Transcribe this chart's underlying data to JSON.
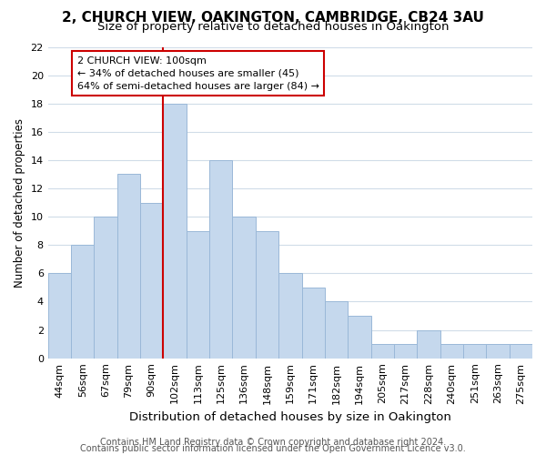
{
  "title": "2, CHURCH VIEW, OAKINGTON, CAMBRIDGE, CB24 3AU",
  "subtitle": "Size of property relative to detached houses in Oakington",
  "xlabel": "Distribution of detached houses by size in Oakington",
  "ylabel": "Number of detached properties",
  "categories": [
    "44sqm",
    "56sqm",
    "67sqm",
    "79sqm",
    "90sqm",
    "102sqm",
    "113sqm",
    "125sqm",
    "136sqm",
    "148sqm",
    "159sqm",
    "171sqm",
    "182sqm",
    "194sqm",
    "205sqm",
    "217sqm",
    "228sqm",
    "240sqm",
    "251sqm",
    "263sqm",
    "275sqm"
  ],
  "values": [
    6,
    8,
    10,
    13,
    11,
    18,
    9,
    14,
    10,
    9,
    6,
    5,
    4,
    3,
    1,
    1,
    2,
    1,
    1,
    1,
    1
  ],
  "bar_color": "#c5d8ed",
  "bar_edge_color": "#9ab8d8",
  "vline_x_index": 5,
  "vline_color": "#cc0000",
  "annotation_line1": "2 CHURCH VIEW: 100sqm",
  "annotation_line2": "← 34% of detached houses are smaller (45)",
  "annotation_line3": "64% of semi-detached houses are larger (84) →",
  "annotation_box_edge": "#cc0000",
  "annotation_box_face": "#ffffff",
  "ylim": [
    0,
    22
  ],
  "yticks": [
    0,
    2,
    4,
    6,
    8,
    10,
    12,
    14,
    16,
    18,
    20,
    22
  ],
  "footer1": "Contains HM Land Registry data © Crown copyright and database right 2024.",
  "footer2": "Contains public sector information licensed under the Open Government Licence v3.0.",
  "title_fontsize": 11,
  "subtitle_fontsize": 9.5,
  "xlabel_fontsize": 9.5,
  "ylabel_fontsize": 8.5,
  "tick_fontsize": 8,
  "annotation_fontsize": 8,
  "footer_fontsize": 7,
  "background_color": "#ffffff",
  "grid_color": "#d0dce8"
}
